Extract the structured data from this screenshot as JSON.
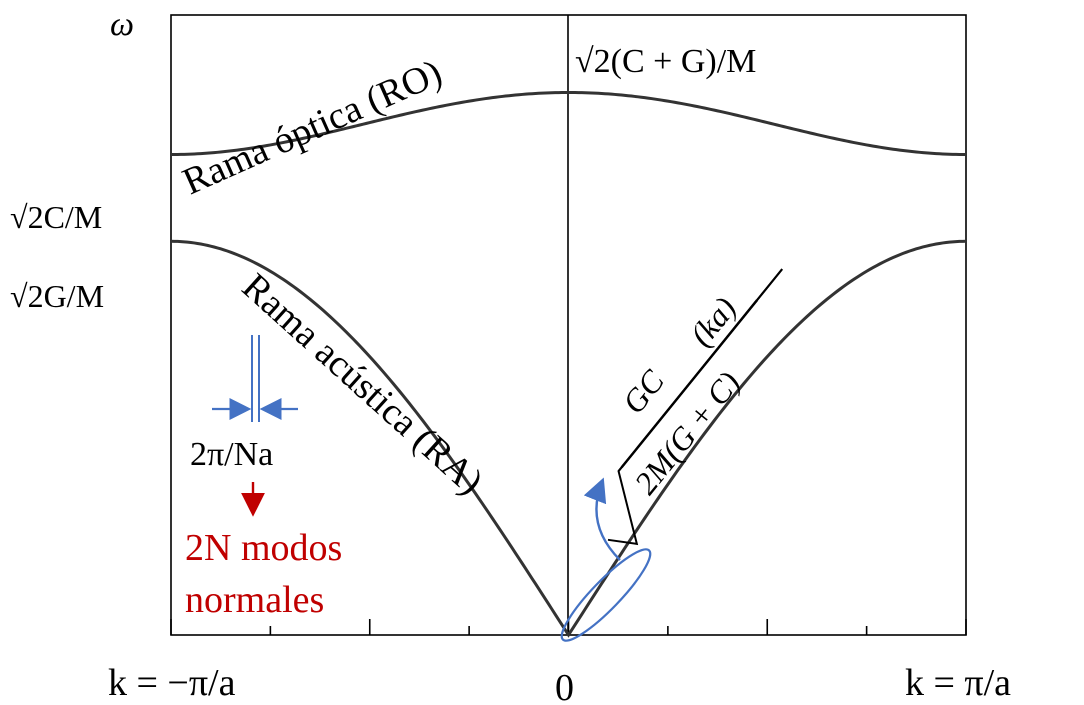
{
  "chart_data": {
    "type": "line",
    "title": "",
    "xlabel": "",
    "ylabel": "ω",
    "x_tick_labels": {
      "left": "k = −π/a",
      "center": "0",
      "right": "k = π/a"
    },
    "y_tick_labels": {
      "upper": "√2C/M",
      "lower": "√2G/M"
    },
    "series": [
      {
        "name": "Rama óptica (RO)",
        "model": "sqrt(a + b*cos^2(ka/2))",
        "x_domain": [
          -3.1416,
          3.1416
        ],
        "y_at_center": 0.875,
        "y_at_edge": 0.775,
        "color": "#333333"
      },
      {
        "name": "Rama acústica (RA)",
        "model": "c*|sin(ka/2)|",
        "x_domain": [
          -3.1416,
          3.1416
        ],
        "y_at_center": 0,
        "y_at_edge": 0.635,
        "color": "#333333"
      }
    ],
    "ylim": [
      0,
      1
    ],
    "xlim": [
      -3.1416,
      3.1416
    ],
    "grid": false,
    "legend": "none"
  },
  "annotations": {
    "top_value": "√2(C + G)/M",
    "slope_formula": "√ GC / 2M(G + C) (ka)",
    "slope_numerator": "GC",
    "slope_denominator": "2M(G + C)",
    "slope_factor": "(ka)",
    "spacing_label": "2π/Na",
    "modes_line1": "2N modos",
    "modes_line2": "normales",
    "annotation_color": "#4472c4",
    "modes_color": "#c00000"
  }
}
